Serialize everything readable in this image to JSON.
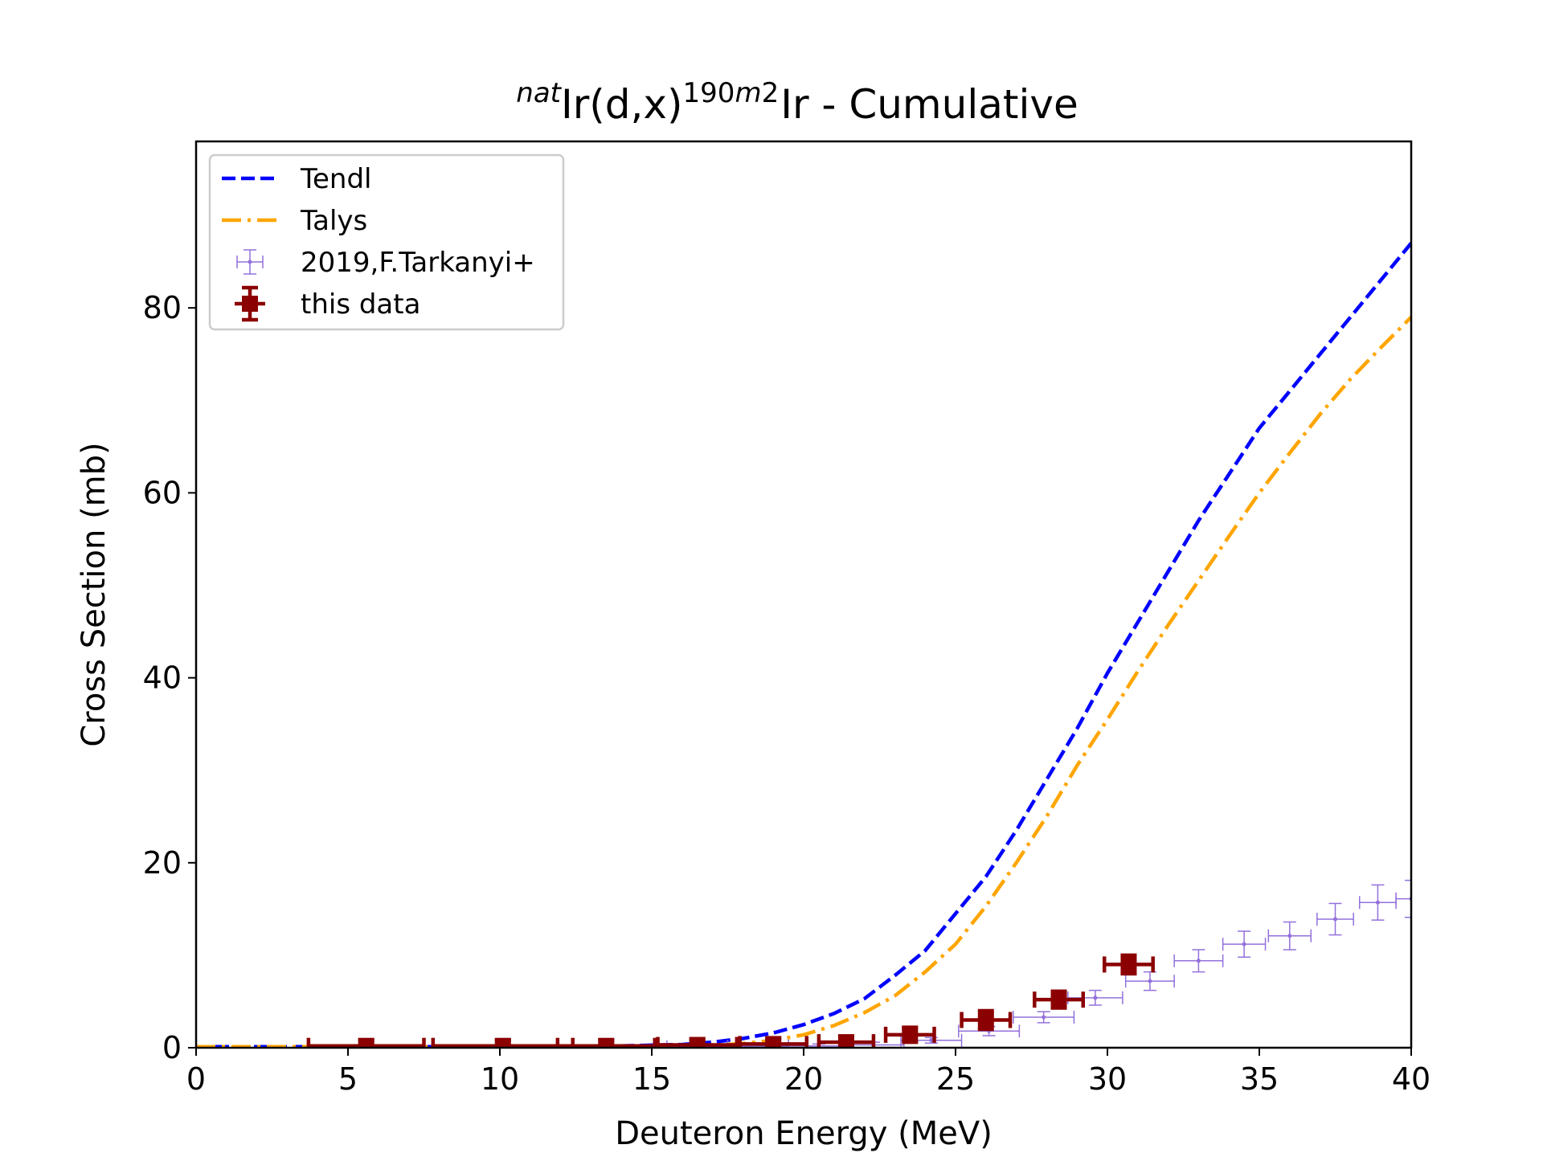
{
  "chart_data": {
    "type": "scatter",
    "title": {
      "prefix_sup": "nat",
      "main": "Ir(d,x)",
      "product_sup": "190m2",
      "suffix": "Ir - Cumulative"
    },
    "xlabel": "Deuteron Energy (MeV)",
    "ylabel": "Cross Section (mb)",
    "xlim": [
      0,
      40
    ],
    "ylim": [
      0,
      98
    ],
    "xticks": [
      0,
      5,
      10,
      15,
      20,
      25,
      30,
      35,
      40
    ],
    "yticks": [
      0,
      20,
      40,
      60,
      80
    ],
    "grid": false,
    "legend_position": "top-left",
    "series": [
      {
        "name": "Tendl",
        "kind": "line",
        "style": "dashed",
        "color": "#0000ff",
        "x": [
          0,
          10,
          14,
          16,
          17,
          18,
          19,
          20,
          21,
          22,
          23,
          24,
          25,
          26,
          27,
          28,
          29,
          30,
          31,
          32,
          33,
          34,
          35,
          36,
          37,
          38,
          39,
          40
        ],
        "y": [
          0.1,
          0.1,
          0.2,
          0.35,
          0.6,
          1.0,
          1.6,
          2.5,
          3.7,
          5.3,
          7.8,
          10.5,
          14.5,
          18.5,
          23.5,
          29,
          34.5,
          40.5,
          46,
          51.5,
          57,
          62,
          67,
          71,
          75,
          79,
          83,
          87
        ]
      },
      {
        "name": "Talys",
        "kind": "line",
        "style": "dashdot",
        "color": "#ffa500",
        "x": [
          0,
          10,
          15,
          17,
          18,
          19,
          20,
          21,
          22,
          23,
          24,
          25,
          26,
          27,
          28,
          29,
          30,
          31,
          32,
          33,
          34,
          35,
          36,
          37,
          38,
          39,
          40
        ],
        "y": [
          0.1,
          0.1,
          0.1,
          0.25,
          0.45,
          0.8,
          1.4,
          2.4,
          3.8,
          5.6,
          8.2,
          11.2,
          15.3,
          20,
          25,
          30.5,
          35.5,
          40.7,
          45.7,
          50.5,
          55.3,
          60,
          64.3,
          68.5,
          72.3,
          75.7,
          79
        ]
      },
      {
        "name": "2019,F.Tarkanyi+",
        "kind": "errorbar",
        "color": "#9370db",
        "points": [
          {
            "x": 16.5,
            "y": 0.1,
            "xerr": 1.0,
            "yerr": 0.2
          },
          {
            "x": 18.5,
            "y": 0.15,
            "xerr": 1.0,
            "yerr": 0.2
          },
          {
            "x": 20.5,
            "y": 0.2,
            "xerr": 1.0,
            "yerr": 0.2
          },
          {
            "x": 22.3,
            "y": 0.3,
            "xerr": 1.0,
            "yerr": 0.3
          },
          {
            "x": 24.2,
            "y": 0.8,
            "xerr": 1.0,
            "yerr": 0.3
          },
          {
            "x": 26.1,
            "y": 1.8,
            "xerr": 1.0,
            "yerr": 0.5
          },
          {
            "x": 27.9,
            "y": 3.3,
            "xerr": 1.0,
            "yerr": 0.6
          },
          {
            "x": 29.6,
            "y": 5.4,
            "xerr": 0.9,
            "yerr": 0.8
          },
          {
            "x": 31.4,
            "y": 7.2,
            "xerr": 0.8,
            "yerr": 1.0
          },
          {
            "x": 33.0,
            "y": 9.4,
            "xerr": 0.8,
            "yerr": 1.2
          },
          {
            "x": 34.5,
            "y": 11.2,
            "xerr": 0.7,
            "yerr": 1.4
          },
          {
            "x": 36.0,
            "y": 12.1,
            "xerr": 0.7,
            "yerr": 1.5
          },
          {
            "x": 37.5,
            "y": 13.9,
            "xerr": 0.6,
            "yerr": 1.7
          },
          {
            "x": 38.9,
            "y": 15.7,
            "xerr": 0.6,
            "yerr": 1.9
          },
          {
            "x": 40.0,
            "y": 16.1,
            "xerr": 0.5,
            "yerr": 2.0
          }
        ]
      },
      {
        "name": "this data",
        "kind": "errorbar",
        "color": "#8b0000",
        "points": [
          {
            "x": 5.6,
            "y": 0.2,
            "xerr": 1.9,
            "yerr": 0.6
          },
          {
            "x": 10.1,
            "y": 0.2,
            "xerr": 2.3,
            "yerr": 0.6
          },
          {
            "x": 13.5,
            "y": 0.2,
            "xerr": 1.6,
            "yerr": 0.6
          },
          {
            "x": 16.5,
            "y": 0.3,
            "xerr": 1.3,
            "yerr": 0.6
          },
          {
            "x": 19.0,
            "y": 0.4,
            "xerr": 1.1,
            "yerr": 0.6
          },
          {
            "x": 21.4,
            "y": 0.6,
            "xerr": 0.9,
            "yerr": 0.6
          },
          {
            "x": 23.5,
            "y": 1.4,
            "xerr": 0.8,
            "yerr": 0.8
          },
          {
            "x": 26.0,
            "y": 3.0,
            "xerr": 0.8,
            "yerr": 1.0
          },
          {
            "x": 28.4,
            "y": 5.2,
            "xerr": 0.8,
            "yerr": 0.9
          },
          {
            "x": 30.7,
            "y": 9.0,
            "xerr": 0.8,
            "yerr": 1.0
          }
        ]
      }
    ]
  }
}
